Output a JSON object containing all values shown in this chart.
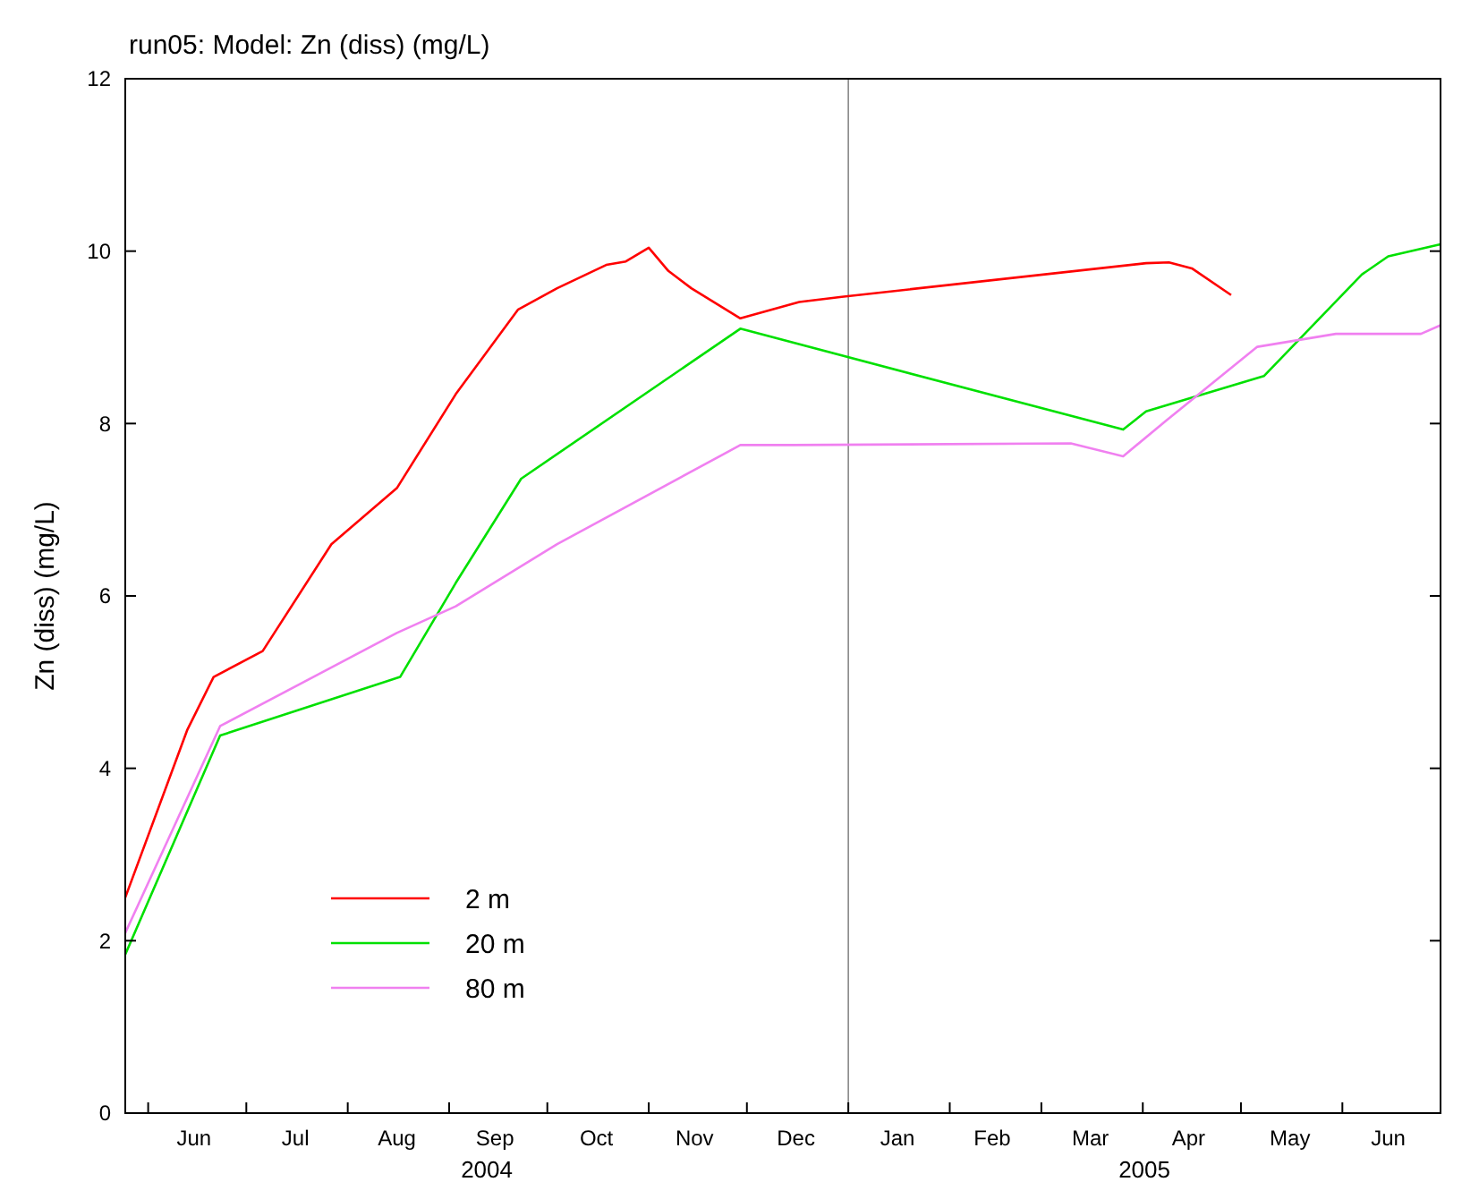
{
  "chart_data": {
    "type": "line",
    "title": "run05: Model: Zn (diss) (mg/L)",
    "ylabel": "Zn (diss) (mg/L)",
    "xlim": [
      "2004-05-25",
      "2005-07-01"
    ],
    "ylim": [
      0,
      12
    ],
    "yticks": [
      0,
      2,
      4,
      6,
      8,
      10,
      12
    ],
    "xticks": [
      {
        "value": "2004-06-01",
        "label": null
      },
      {
        "value": "2004-06-15",
        "label": "Jun"
      },
      {
        "value": "2004-07-01",
        "label": null
      },
      {
        "value": "2004-07-16",
        "label": "Jul"
      },
      {
        "value": "2004-08-01",
        "label": null
      },
      {
        "value": "2004-08-16",
        "label": "Aug"
      },
      {
        "value": "2004-09-01",
        "label": null
      },
      {
        "value": "2004-09-15",
        "label": "Sep"
      },
      {
        "value": "2004-10-01",
        "label": null
      },
      {
        "value": "2004-10-16",
        "label": "Oct"
      },
      {
        "value": "2004-11-01",
        "label": null
      },
      {
        "value": "2004-11-15",
        "label": "Nov"
      },
      {
        "value": "2004-12-01",
        "label": null
      },
      {
        "value": "2004-12-16",
        "label": "Dec"
      },
      {
        "value": "2005-01-01",
        "label": null
      },
      {
        "value": "2005-01-16",
        "label": "Jan"
      },
      {
        "value": "2005-02-01",
        "label": null
      },
      {
        "value": "2005-02-14",
        "label": "Feb"
      },
      {
        "value": "2005-03-01",
        "label": null
      },
      {
        "value": "2005-03-16",
        "label": "Mar"
      },
      {
        "value": "2005-04-01",
        "label": null
      },
      {
        "value": "2005-04-15",
        "label": "Apr"
      },
      {
        "value": "2005-05-01",
        "label": null
      },
      {
        "value": "2005-05-16",
        "label": "May"
      },
      {
        "value": "2005-06-01",
        "label": null
      },
      {
        "value": "2005-06-15",
        "label": "Jun"
      }
    ],
    "annotations": [
      "2004",
      "2005"
    ],
    "ref_lines": [
      {
        "axis": "x",
        "value": "2005-01-01",
        "color": "#888888"
      }
    ],
    "grid": false,
    "legend": "bottom left",
    "line_style": "solid",
    "series": [
      {
        "name": "2 m",
        "color": "#ff0000",
        "x": [
          "2004-05-25",
          "2004-06-13",
          "2004-06-21",
          "2004-07-06",
          "2004-07-27",
          "2004-08-16",
          "2004-09-03",
          "2004-09-22",
          "2004-10-04",
          "2004-10-19",
          "2004-10-25",
          "2004-11-01",
          "2004-11-07",
          "2004-11-14",
          "2004-11-29",
          "2004-12-17",
          "2004-12-30",
          "2005-04-02",
          "2005-04-09",
          "2005-04-16",
          "2005-04-28"
        ],
        "values": [
          2.5,
          4.45,
          5.06,
          5.36,
          6.6,
          7.25,
          8.34,
          9.32,
          9.57,
          9.84,
          9.88,
          10.04,
          9.77,
          9.57,
          9.22,
          9.41,
          9.47,
          9.86,
          9.87,
          9.8,
          9.49
        ]
      },
      {
        "name": "20 m",
        "color": "#00e000",
        "x": [
          "2004-05-25",
          "2004-06-23",
          "2004-08-17",
          "2004-09-03",
          "2004-09-23",
          "2004-11-29",
          "2005-03-26",
          "2005-04-02",
          "2005-05-08",
          "2005-06-07",
          "2005-06-15",
          "2005-07-01"
        ],
        "values": [
          1.84,
          4.38,
          5.06,
          6.15,
          7.36,
          9.1,
          7.93,
          8.14,
          8.55,
          9.73,
          9.94,
          10.08
        ]
      },
      {
        "name": "80 m",
        "color": "#f080f0",
        "x": [
          "2004-05-25",
          "2004-06-23",
          "2004-08-16",
          "2004-09-03",
          "2004-10-04",
          "2004-11-29",
          "2004-12-15",
          "2005-03-10",
          "2005-03-26",
          "2005-04-08",
          "2005-05-06",
          "2005-05-30",
          "2005-06-25",
          "2005-07-01"
        ],
        "values": [
          2.09,
          4.49,
          5.57,
          5.88,
          6.6,
          7.75,
          7.75,
          7.77,
          7.62,
          8.03,
          8.89,
          9.04,
          9.04,
          9.14
        ]
      }
    ]
  }
}
